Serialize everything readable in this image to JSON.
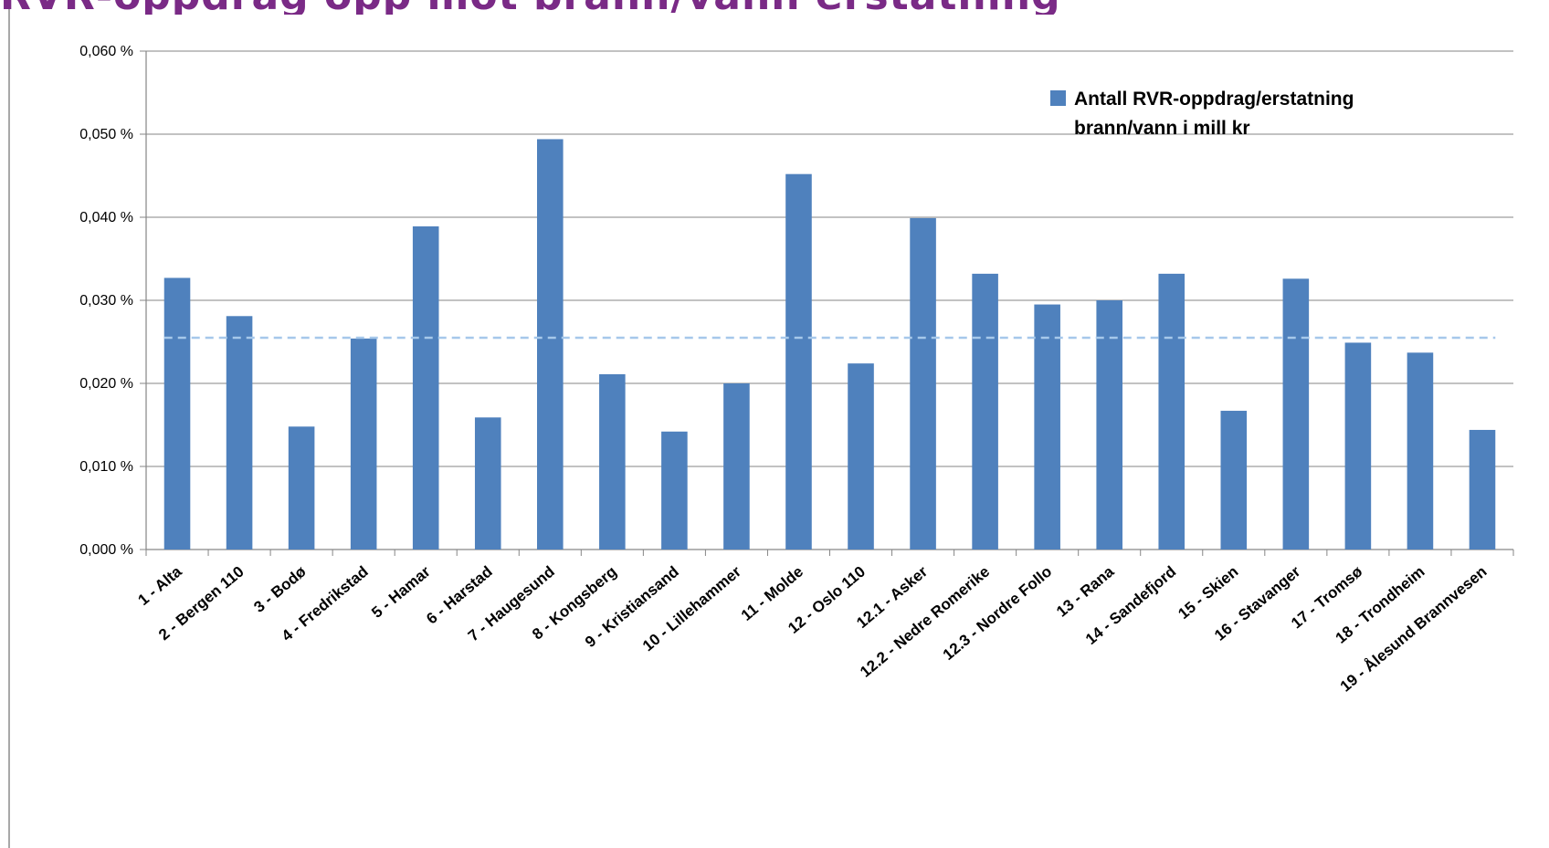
{
  "page": {
    "title": "RVR-oppdrag opp mot brann/vann erstatning"
  },
  "chart_data": {
    "type": "bar",
    "title": "",
    "xlabel": "",
    "ylabel": "",
    "ylim": [
      0,
      0.06
    ],
    "yticks": [
      "0,000 %",
      "0,010 %",
      "0,020 %",
      "0,030 %",
      "0,040 %",
      "0,050 %",
      "0,060 %"
    ],
    "grid": true,
    "legend_position": "top-right",
    "categories": [
      "1 - Alta",
      "2 - Bergen 110",
      "3 - Bodø",
      "4 - Fredrikstad",
      "5 - Hamar",
      "6 - Harstad",
      "7 - Haugesund",
      "8 - Kongsberg",
      "9 - Kristiansand",
      "10 - Lillehammer",
      "11 - Molde",
      "12 - Oslo 110",
      "12.1 - Asker",
      "12.2 - Nedre Romerike",
      "12.3 - Nordre Follo",
      "13 - Rana",
      "14 - Sandefjord",
      "15 - Skien",
      "16 - Stavanger",
      "17 - Tromsø",
      "18 - Trondheim",
      "19 - Ålesund Brannvesen"
    ],
    "series": [
      {
        "name": "Antall RVR-oppdrag/erstatning brann/vann i mill kr",
        "color": "#4f81bd",
        "values": [
          0.0327,
          0.0281,
          0.0148,
          0.0254,
          0.0389,
          0.0159,
          0.0494,
          0.0211,
          0.0142,
          0.02,
          0.0452,
          0.0224,
          0.0399,
          0.0332,
          0.0295,
          0.03,
          0.0332,
          0.0167,
          0.0326,
          0.0249,
          0.0237,
          0.0144
        ]
      }
    ],
    "average_line": {
      "value": 0.0255,
      "color": "#a6c8ea",
      "style": "dashed"
    }
  }
}
